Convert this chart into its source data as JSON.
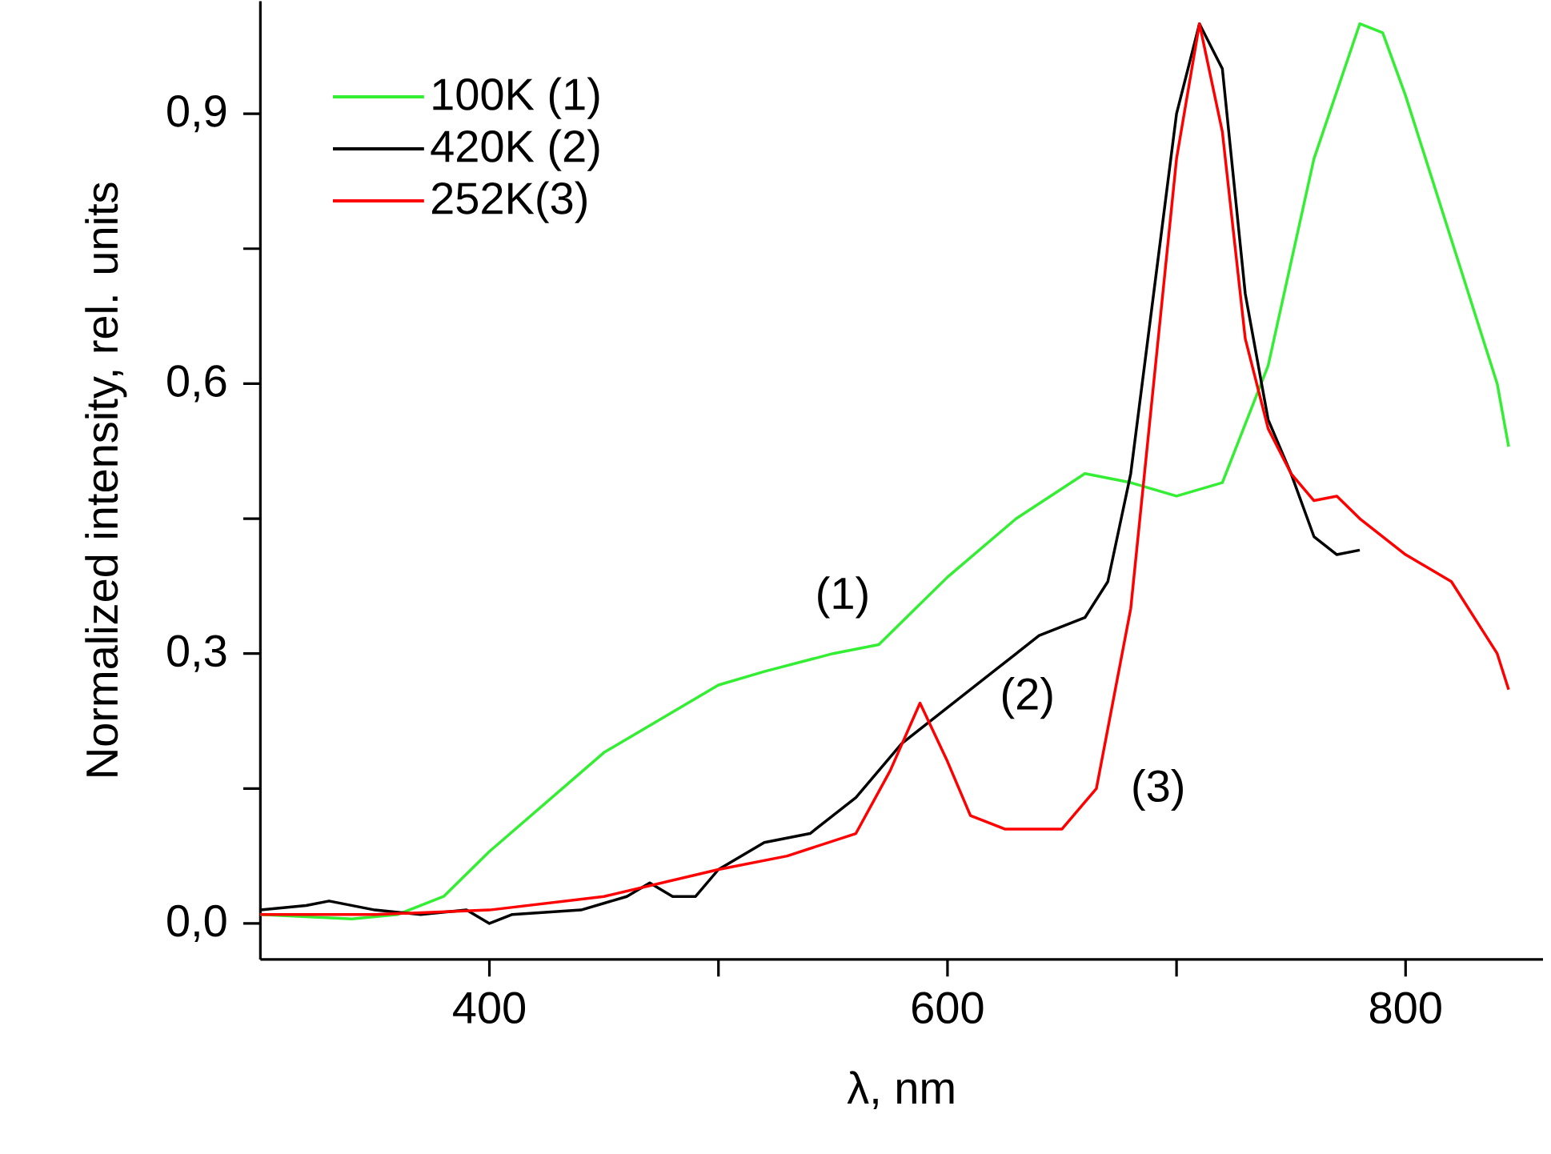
{
  "chart_data": {
    "type": "line",
    "xlabel": "λ, nm",
    "ylabel": "Normalized intensity, rel. units",
    "xlim": [
      300,
      860
    ],
    "ylim": [
      -0.04,
      1.025
    ],
    "xticks": [
      400,
      {
        "value": 500,
        "label": null
      },
      600,
      {
        "value": 700,
        "label": null
      },
      800
    ],
    "yticks": [
      {
        "value": 0,
        "label": "0,0"
      },
      {
        "value": 0.15,
        "label": null
      },
      {
        "value": 0.3,
        "label": "0,3"
      },
      {
        "value": 0.45,
        "label": null
      },
      {
        "value": 0.6,
        "label": "0,6"
      },
      {
        "value": 0.75,
        "label": null
      },
      {
        "value": 0.9,
        "label": "0,9"
      }
    ],
    "legend": "top left",
    "series": [
      {
        "name": "100K (1)",
        "color": "#33ee33",
        "x": [
          300,
          340,
          360,
          380,
          400,
          450,
          500,
          520,
          550,
          570,
          600,
          630,
          660,
          680,
          700,
          720,
          740,
          760,
          780,
          790,
          800,
          820,
          840,
          845
        ],
        "values": [
          0.01,
          0.005,
          0.01,
          0.03,
          0.08,
          0.19,
          0.265,
          0.28,
          0.3,
          0.31,
          0.385,
          0.45,
          0.5,
          0.49,
          0.475,
          0.49,
          0.62,
          0.85,
          1.0,
          0.99,
          0.92,
          0.76,
          0.6,
          0.53
        ]
      },
      {
        "name": "420K (2)",
        "color": "#000000",
        "x": [
          300,
          320,
          330,
          350,
          370,
          390,
          400,
          410,
          440,
          460,
          470,
          480,
          490,
          500,
          520,
          540,
          560,
          580,
          600,
          620,
          640,
          660,
          670,
          680,
          690,
          700,
          710,
          720,
          730,
          740,
          750,
          760,
          770,
          780
        ],
        "values": [
          0.015,
          0.02,
          0.025,
          0.015,
          0.01,
          0.015,
          0.0,
          0.01,
          0.015,
          0.03,
          0.045,
          0.03,
          0.03,
          0.06,
          0.09,
          0.1,
          0.14,
          0.2,
          0.24,
          0.28,
          0.32,
          0.34,
          0.38,
          0.5,
          0.7,
          0.9,
          1.0,
          0.95,
          0.7,
          0.56,
          0.5,
          0.43,
          0.41,
          0.415
        ]
      },
      {
        "name": "252K(3)",
        "color": "#ff0000",
        "x": [
          300,
          350,
          400,
          450,
          500,
          530,
          560,
          575,
          588,
          600,
          610,
          625,
          650,
          665,
          680,
          690,
          700,
          710,
          720,
          730,
          740,
          750,
          760,
          770,
          780,
          800,
          820,
          840,
          845
        ],
        "values": [
          0.01,
          0.01,
          0.015,
          0.03,
          0.06,
          0.075,
          0.1,
          0.17,
          0.245,
          0.18,
          0.12,
          0.105,
          0.105,
          0.15,
          0.35,
          0.6,
          0.85,
          1.0,
          0.88,
          0.65,
          0.55,
          0.5,
          0.47,
          0.475,
          0.45,
          0.41,
          0.38,
          0.3,
          0.26
        ]
      }
    ],
    "annotations": [
      "(1)",
      "(2)",
      "(3)"
    ]
  }
}
